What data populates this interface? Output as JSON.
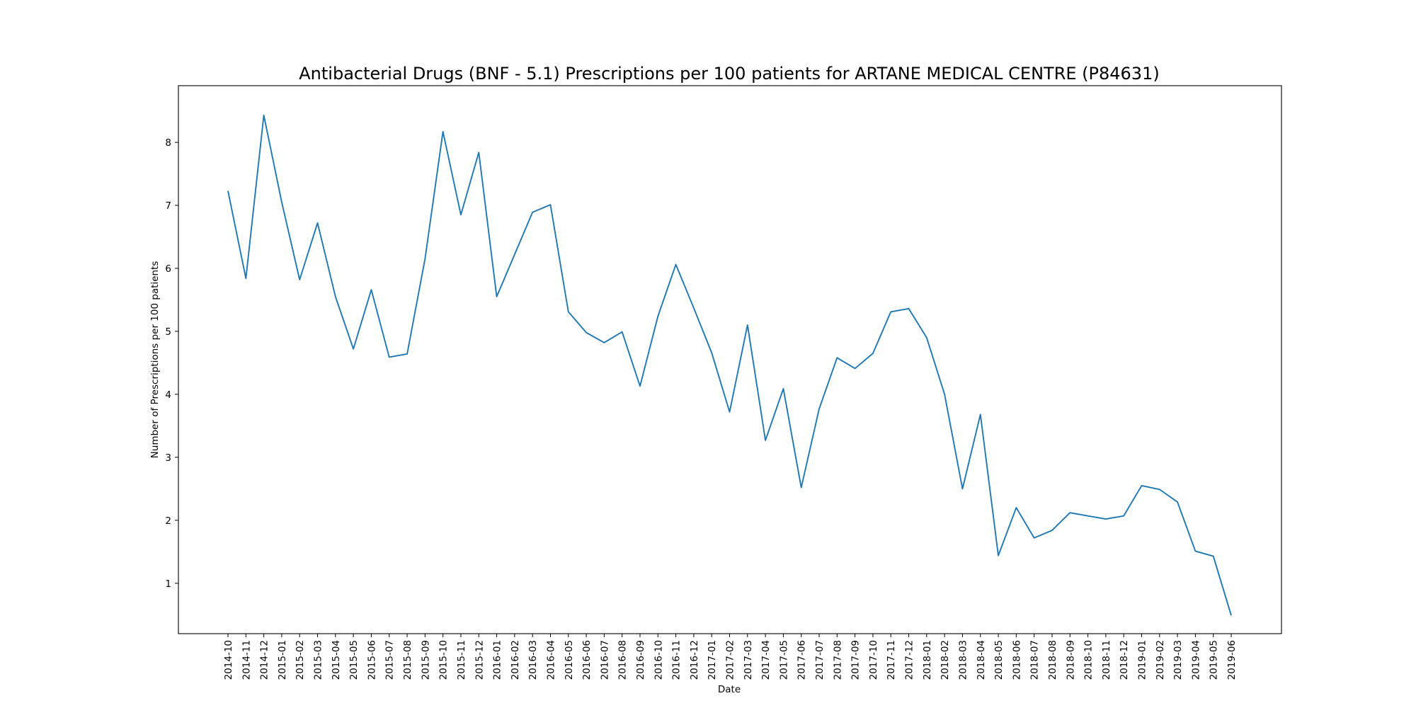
{
  "chart_data": {
    "type": "line",
    "title": "Antibacterial Drugs (BNF - 5.1) Prescriptions per 100 patients for ARTANE MEDICAL CENTRE (P84631)",
    "xlabel": "Date",
    "ylabel": "Number of Prescriptions per 100 patients",
    "ylim": [
      0.2,
      8.9
    ],
    "yticks": [
      1,
      2,
      3,
      4,
      5,
      6,
      7,
      8
    ],
    "grid": false,
    "legend": "none",
    "line_color": "#1f77b4",
    "x": [
      "2014-10",
      "2014-11",
      "2014-12",
      "2015-01",
      "2015-02",
      "2015-03",
      "2015-04",
      "2015-05",
      "2015-06",
      "2015-07",
      "2015-08",
      "2015-09",
      "2015-10",
      "2015-11",
      "2015-12",
      "2016-01",
      "2016-02",
      "2016-03",
      "2016-04",
      "2016-05",
      "2016-06",
      "2016-07",
      "2016-08",
      "2016-09",
      "2016-10",
      "2016-11",
      "2016-12",
      "2017-01",
      "2017-02",
      "2017-03",
      "2017-04",
      "2017-05",
      "2017-06",
      "2017-07",
      "2017-08",
      "2017-09",
      "2017-10",
      "2017-11",
      "2017-12",
      "2018-01",
      "2018-02",
      "2018-03",
      "2018-04",
      "2018-05",
      "2018-06",
      "2018-07",
      "2018-08",
      "2018-09",
      "2018-10",
      "2018-11",
      "2018-12",
      "2019-01",
      "2019-02",
      "2019-03",
      "2019-04",
      "2019-05",
      "2019-06"
    ],
    "series": [
      {
        "values": [
          7.23,
          5.84,
          8.43,
          7.05,
          5.82,
          6.72,
          5.55,
          4.72,
          5.66,
          4.59,
          4.64,
          6.15,
          8.17,
          6.85,
          7.84,
          5.55,
          6.22,
          6.89,
          7.01,
          5.31,
          4.98,
          4.82,
          4.99,
          4.13,
          5.24,
          6.06,
          5.37,
          4.66,
          3.72,
          5.1,
          3.27,
          4.09,
          2.52,
          3.77,
          4.58,
          4.41,
          4.65,
          5.31,
          5.36,
          4.9,
          4.0,
          2.5,
          3.68,
          1.44,
          2.2,
          1.72,
          1.84,
          2.12,
          2.07,
          2.02,
          2.07,
          2.55,
          2.49,
          2.29,
          1.51,
          1.43,
          0.49
        ]
      }
    ]
  }
}
